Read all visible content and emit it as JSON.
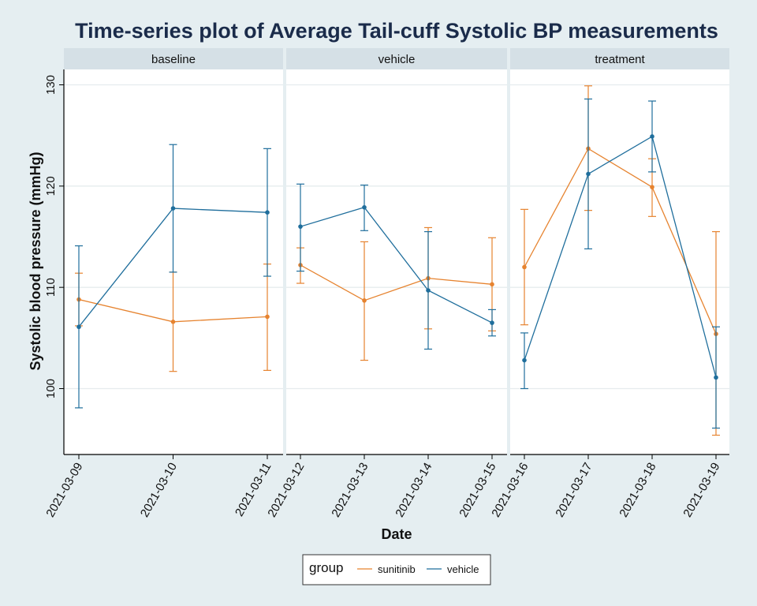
{
  "chart_data": {
    "type": "line",
    "title": "Time-series plot of Average Tail-cuff Systolic BP measurements",
    "xlabel": "Date",
    "ylabel": "Systolic blood pressure (mmHg)",
    "ylim": [
      94,
      131
    ],
    "yticks": [
      100,
      110,
      120,
      130
    ],
    "legend": {
      "title": "group",
      "position": "bottom"
    },
    "colors": {
      "sunitinib": "#e6832f",
      "vehicle": "#1f6e9c"
    },
    "panels": [
      {
        "label": "baseline",
        "x": [
          "2021-03-09",
          "2021-03-10",
          "2021-03-11"
        ],
        "series": [
          {
            "name": "sunitinib",
            "values": [
              108.8,
              106.6,
              107.1
            ],
            "lower": [
              106.2,
              101.7,
              101.8
            ],
            "upper": [
              111.4,
              111.5,
              112.3
            ]
          },
          {
            "name": "vehicle",
            "values": [
              106.1,
              117.8,
              117.4
            ],
            "lower": [
              98.1,
              111.5,
              111.1
            ],
            "upper": [
              114.1,
              124.1,
              123.7
            ]
          }
        ]
      },
      {
        "label": "vehicle",
        "x": [
          "2021-03-12",
          "2021-03-13",
          "2021-03-14",
          "2021-03-15"
        ],
        "series": [
          {
            "name": "sunitinib",
            "values": [
              112.2,
              108.7,
              110.9,
              110.3
            ],
            "lower": [
              110.4,
              102.8,
              105.9,
              105.7
            ],
            "upper": [
              113.9,
              114.5,
              115.9,
              114.9
            ]
          },
          {
            "name": "vehicle",
            "values": [
              116.0,
              117.9,
              109.7,
              106.5
            ],
            "lower": [
              111.6,
              115.6,
              103.9,
              105.2
            ],
            "upper": [
              120.2,
              120.1,
              115.5,
              107.8
            ]
          }
        ]
      },
      {
        "label": "treatment",
        "x": [
          "2021-03-16",
          "2021-03-17",
          "2021-03-18",
          "2021-03-19"
        ],
        "series": [
          {
            "name": "sunitinib",
            "values": [
              112.0,
              123.7,
              119.9,
              105.4
            ],
            "lower": [
              106.3,
              117.6,
              117.0,
              95.4
            ],
            "upper": [
              117.7,
              129.9,
              122.7,
              115.5
            ]
          },
          {
            "name": "vehicle",
            "values": [
              102.8,
              121.2,
              124.9,
              101.1
            ],
            "lower": [
              100.0,
              113.8,
              121.4,
              96.1
            ],
            "upper": [
              105.5,
              128.6,
              128.4,
              106.1
            ]
          }
        ]
      }
    ]
  }
}
